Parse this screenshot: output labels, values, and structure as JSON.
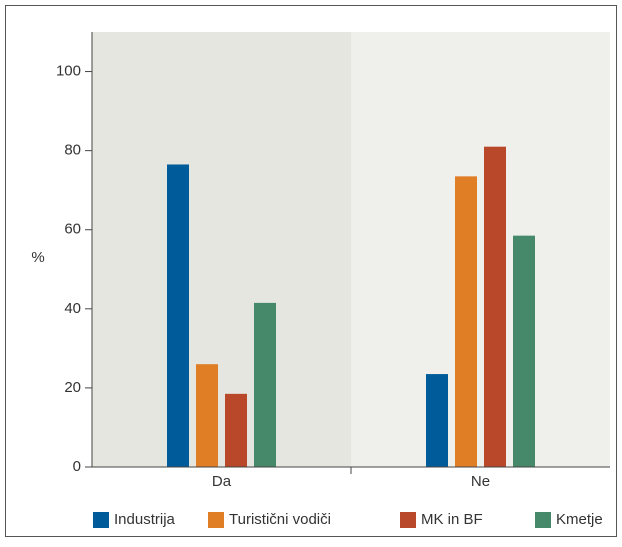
{
  "chart_data": {
    "type": "bar",
    "title": "",
    "xlabel": "",
    "ylabel": "%",
    "ylim": [
      0,
      110
    ],
    "yticks": [
      0,
      20,
      40,
      60,
      80,
      100
    ],
    "grid": false,
    "legend_position": "bottom",
    "categories": [
      "Da",
      "Ne"
    ],
    "series": [
      {
        "name": "Industrija",
        "color": "#005b9a",
        "values": [
          76.5,
          23.5
        ]
      },
      {
        "name": "Turistični vodiči",
        "color": "#e07e26",
        "values": [
          26,
          73.5
        ]
      },
      {
        "name": "MK in BF",
        "color": "#b9472a",
        "values": [
          18.5,
          81
        ]
      },
      {
        "name": "Kmetje",
        "color": "#45896a",
        "values": [
          41.5,
          58.5
        ]
      }
    ],
    "panel_colors": [
      "#e6e6e1",
      "#efefeb"
    ]
  }
}
